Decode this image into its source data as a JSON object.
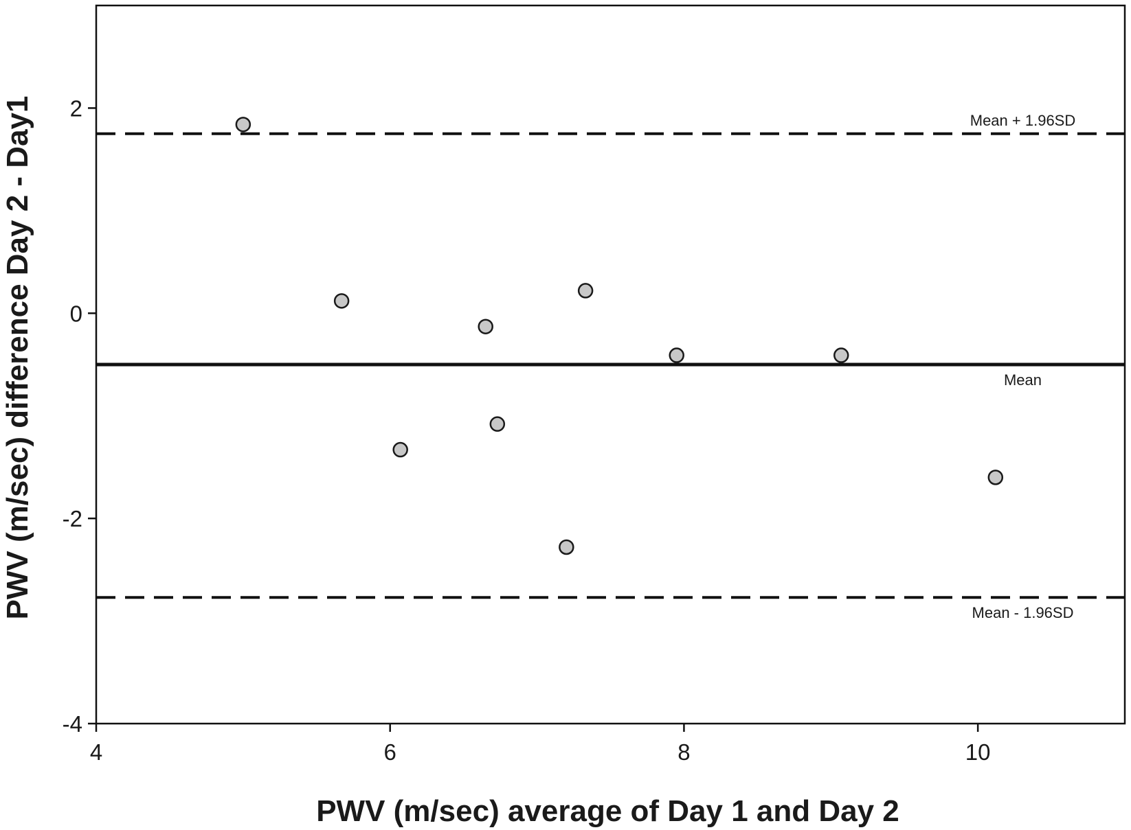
{
  "chart_data": {
    "type": "scatter",
    "title": "",
    "xlabel": "PWV (m/sec) average of Day 1 and Day 2",
    "ylabel": "PWV (m/sec) difference Day 2 - Day1",
    "xlim": [
      4,
      11
    ],
    "ylim": [
      -4,
      3
    ],
    "xticks": [
      4,
      6,
      8,
      10
    ],
    "yticks": [
      -4,
      -2,
      0,
      2
    ],
    "x_tick_labels": [
      "4",
      "6",
      "8",
      "10"
    ],
    "y_tick_labels": [
      "-4",
      "-2",
      "0",
      "2"
    ],
    "grid": false,
    "points": [
      {
        "x": 5.0,
        "y": 1.84
      },
      {
        "x": 5.67,
        "y": 0.12
      },
      {
        "x": 6.07,
        "y": -1.33
      },
      {
        "x": 6.65,
        "y": -0.13
      },
      {
        "x": 6.73,
        "y": -1.08
      },
      {
        "x": 7.2,
        "y": -2.28
      },
      {
        "x": 7.33,
        "y": 0.22
      },
      {
        "x": 7.95,
        "y": -0.41
      },
      {
        "x": 9.07,
        "y": -0.41
      },
      {
        "x": 10.12,
        "y": -1.6
      }
    ],
    "reference_lines": [
      {
        "label": "Mean + 1.96SD",
        "y": 1.75,
        "style": "dashed"
      },
      {
        "label": "Mean",
        "y": -0.5,
        "style": "solid"
      },
      {
        "label": "Mean - 1.96SD",
        "y": -2.77,
        "style": "dashed"
      }
    ],
    "colors": {
      "point_fill": "#c8c8c8",
      "point_stroke": "#1a1a1a",
      "line": "#111111"
    }
  }
}
